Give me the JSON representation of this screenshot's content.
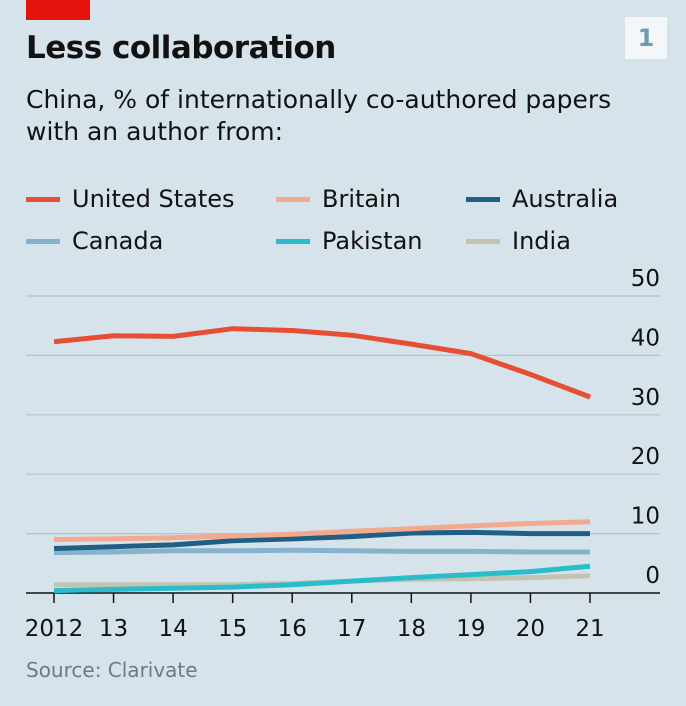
{
  "header": {
    "badge": "1",
    "title": "Less collaboration",
    "subtitle": "China, % of internationally co-authored papers with an author from:"
  },
  "legend": [
    {
      "label": "United States",
      "color": "#e64e36"
    },
    {
      "label": "Britain",
      "color": "#f2a98e"
    },
    {
      "label": "Australia",
      "color": "#1f5f85"
    },
    {
      "label": "Canada",
      "color": "#86b3cb"
    },
    {
      "label": "Pakistan",
      "color": "#2bbccb"
    },
    {
      "label": "India",
      "color": "#c3c3b1"
    }
  ],
  "source": "Source: Clarivate",
  "chart_data": {
    "type": "line",
    "x": [
      "2012",
      "13",
      "14",
      "15",
      "16",
      "17",
      "18",
      "19",
      "20",
      "21"
    ],
    "ylim": [
      0,
      50
    ],
    "yticks": [
      0,
      10,
      20,
      30,
      40,
      50
    ],
    "grid": true,
    "legend_position": "top",
    "series": [
      {
        "name": "United States",
        "color": "#e64e36",
        "values": [
          42.3,
          43.3,
          43.2,
          44.5,
          44.2,
          43.4,
          41.9,
          40.3,
          36.8,
          33.0
        ]
      },
      {
        "name": "Britain",
        "color": "#f2a98e",
        "values": [
          9.0,
          9.1,
          9.3,
          9.6,
          9.9,
          10.4,
          10.8,
          11.3,
          11.7,
          12.0
        ]
      },
      {
        "name": "Australia",
        "color": "#1f5f85",
        "values": [
          7.5,
          7.8,
          8.1,
          8.8,
          9.1,
          9.5,
          10.1,
          10.2,
          10.0,
          10.0
        ]
      },
      {
        "name": "Canada",
        "color": "#86b3cb",
        "values": [
          6.8,
          6.9,
          7.1,
          7.1,
          7.2,
          7.1,
          7.0,
          7.0,
          6.9,
          6.9
        ]
      },
      {
        "name": "Pakistan",
        "color": "#2bbccb",
        "values": [
          0.4,
          0.6,
          0.8,
          1.0,
          1.4,
          2.0,
          2.6,
          3.1,
          3.6,
          4.5
        ]
      },
      {
        "name": "India",
        "color": "#c3c3b1",
        "values": [
          1.4,
          1.4,
          1.4,
          1.4,
          1.6,
          2.0,
          2.3,
          2.4,
          2.6,
          2.9
        ]
      }
    ]
  }
}
